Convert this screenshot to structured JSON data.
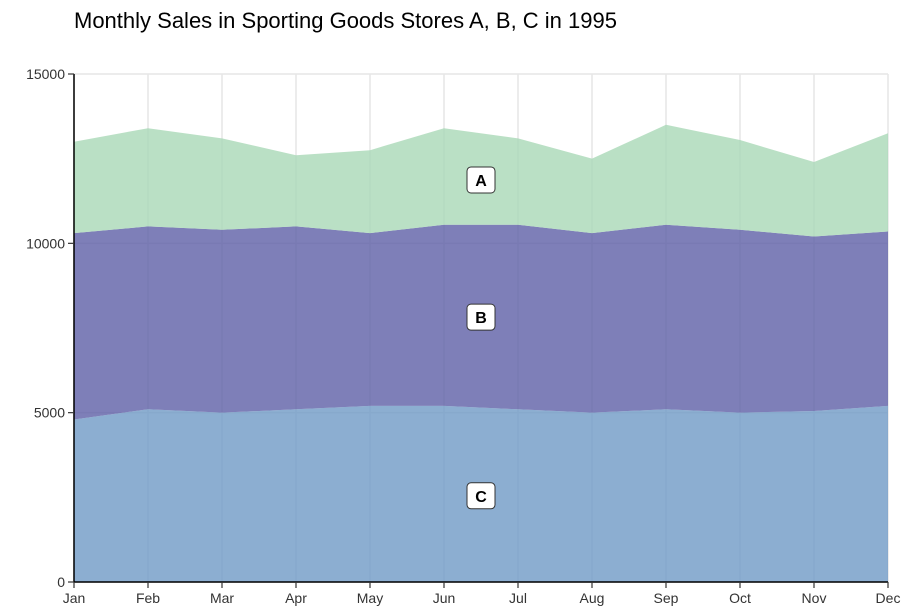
{
  "chart_data": {
    "type": "area",
    "stacked": true,
    "title": "Monthly Sales in Sporting Goods Stores A, B, C in 1995",
    "xlabel": "",
    "ylabel": "",
    "categories": [
      "Jan",
      "Feb",
      "Mar",
      "Apr",
      "May",
      "Jun",
      "Jul",
      "Aug",
      "Sep",
      "Oct",
      "Nov",
      "Dec"
    ],
    "ylim": [
      0,
      15000
    ],
    "yticks": [
      0,
      5000,
      10000,
      15000
    ],
    "ytick_labels": [
      "0",
      "5000",
      "10000",
      "15000"
    ],
    "grid": true,
    "legend": "none",
    "series": [
      {
        "name": "C",
        "color": "#6f9ac6",
        "values": [
          4800,
          5100,
          5000,
          5100,
          5200,
          5200,
          5100,
          5000,
          5100,
          5000,
          5050,
          5200
        ]
      },
      {
        "name": "B",
        "color": "#5e5fa6",
        "values": [
          5500,
          5400,
          5400,
          5400,
          5100,
          5350,
          5450,
          5300,
          5450,
          5400,
          5150,
          5150
        ]
      },
      {
        "name": "A",
        "color": "#a9d8b6",
        "values": [
          2700,
          2900,
          2700,
          2100,
          2450,
          2850,
          2550,
          2200,
          2950,
          2650,
          2200,
          2900
        ]
      }
    ]
  }
}
